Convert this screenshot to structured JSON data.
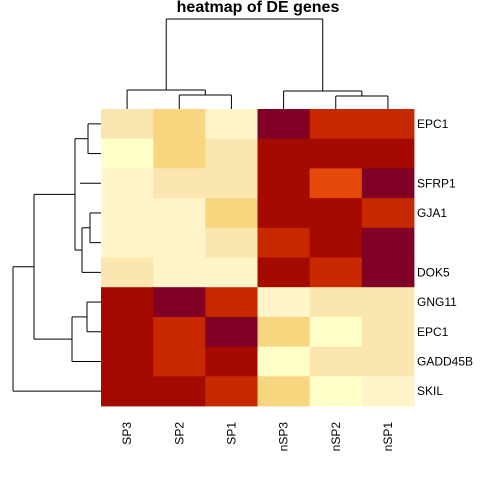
{
  "chart_data": {
    "type": "heatmap",
    "title": "heatmap of DE genes",
    "columns": [
      "SP3",
      "SP2",
      "SP1",
      "nSP3",
      "nSP2",
      "nSP1"
    ],
    "rows": [
      "EPC1",
      "",
      "SFRP1",
      "GJA1",
      "",
      "DOK5",
      "GNG11",
      "EPC1",
      "GADD45B",
      "SKIL"
    ],
    "values": [
      [
        4,
        5,
        3,
        10,
        8,
        8
      ],
      [
        2,
        5,
        4,
        9,
        9,
        9
      ],
      [
        3,
        4,
        4,
        9,
        7,
        10
      ],
      [
        3,
        3,
        5,
        9,
        9,
        8
      ],
      [
        3,
        3,
        4,
        8,
        9,
        10
      ],
      [
        4,
        3,
        3,
        9,
        8,
        10
      ],
      [
        9,
        10,
        8,
        3,
        4,
        4
      ],
      [
        9,
        8,
        10,
        5,
        2,
        4
      ],
      [
        9,
        8,
        9,
        2,
        4,
        4
      ],
      [
        9,
        9,
        8,
        5,
        2,
        3
      ]
    ],
    "value_range": [
      2,
      10
    ],
    "color_scale": [
      "#ffffc8",
      "#fff5c8",
      "#fbe6b0",
      "#f8d67f",
      "#f4c36b",
      "#e64a0a",
      "#c82800",
      "#a50a00",
      "#800026"
    ],
    "dendrogram": {
      "columns": "top",
      "rows": "left"
    }
  }
}
